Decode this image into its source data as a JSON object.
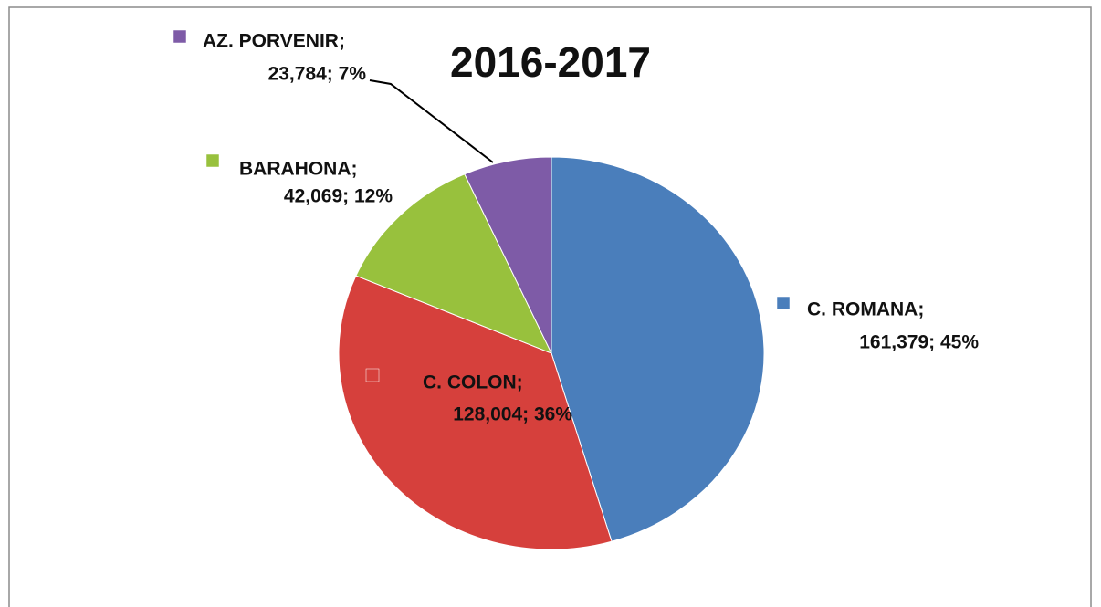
{
  "chart_data": {
    "type": "pie",
    "title": "2016-2017",
    "categories": [
      "C. ROMANA;",
      "C. COLON;",
      "BARAHONA;",
      "AZ. PORVENIR;"
    ],
    "values": [
      161379,
      128004,
      42069,
      23784
    ],
    "value_labels": [
      "161,379; 45%",
      "128,004; 36%",
      "42,069; 12%",
      "23,784; 7%"
    ],
    "colors": [
      "#4a7ebb",
      "#d6403c",
      "#98c13d",
      "#7e5ba7"
    ]
  }
}
